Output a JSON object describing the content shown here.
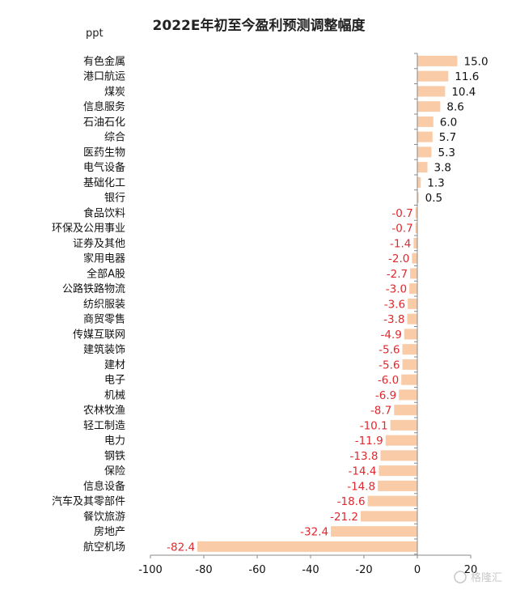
{
  "chart_data": {
    "type": "bar",
    "orientation": "horizontal",
    "title": "2022E年初至今盈利预测调整幅度",
    "unit_label": "ppt",
    "categories": [
      "有色金属",
      "港口航运",
      "煤炭",
      "信息服务",
      "石油石化",
      "综合",
      "医药生物",
      "电气设备",
      "基础化工",
      "银行",
      "食品饮料",
      "环保及公用事业",
      "证券及其他",
      "家用电器",
      "全部A股",
      "公路铁路物流",
      "纺织服装",
      "商贸零售",
      "传媒互联网",
      "建筑装饰",
      "建材",
      "电子",
      "机械",
      "农林牧渔",
      "轻工制造",
      "电力",
      "钢铁",
      "保险",
      "信息设备",
      "汽车及其零部件",
      "餐饮旅游",
      "房地产",
      "航空机场"
    ],
    "values": [
      15.0,
      11.6,
      10.4,
      8.6,
      6.0,
      5.7,
      5.3,
      3.8,
      1.3,
      0.5,
      -0.7,
      -0.7,
      -1.4,
      -2.0,
      -2.7,
      -3.0,
      -3.6,
      -3.8,
      -4.9,
      -5.6,
      -5.6,
      -6.0,
      -6.9,
      -8.7,
      -10.1,
      -11.9,
      -13.8,
      -14.4,
      -14.8,
      -18.6,
      -21.2,
      -32.4,
      -82.4
    ],
    "value_labels": [
      "15.0",
      "11.6",
      "10.4",
      "8.6",
      "6.0",
      "5.7",
      "5.3",
      "3.8",
      "1.3",
      "0.5",
      "-0.7",
      "-0.7",
      "-1.4",
      "-2.0",
      "-2.7",
      "-3.0",
      "-3.6",
      "-3.8",
      "-4.9",
      "-5.6",
      "-5.6",
      "-6.0",
      "-6.9",
      "-8.7",
      "-10.1",
      "-11.9",
      "-13.8",
      "-14.4",
      "-14.8",
      "-18.6",
      "-21.2",
      "-32.4",
      "-82.4"
    ],
    "xlim": [
      -100,
      20
    ],
    "xticks": [
      "-100",
      "-80",
      "-60",
      "-40",
      "-20",
      "0",
      "20"
    ],
    "grid": false,
    "colors": {
      "bar": "#f9cba6",
      "positive_label": "#111111",
      "negative_label": "#e0282e",
      "axis": "#888888"
    }
  },
  "watermark": "格隆汇"
}
